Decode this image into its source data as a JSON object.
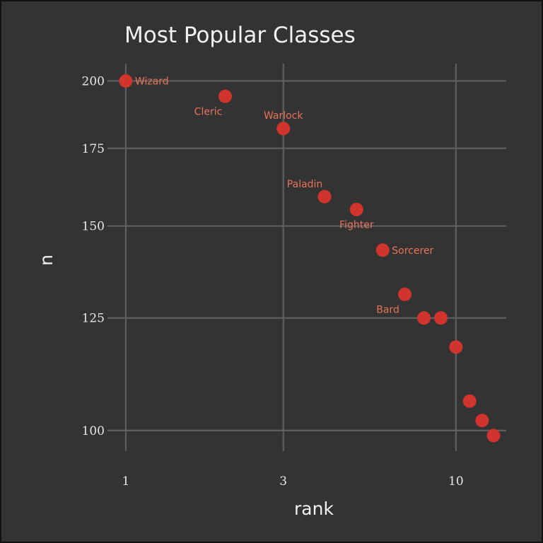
{
  "chart_data": {
    "type": "scatter",
    "title": "Most Popular Classes",
    "xlabel": "rank",
    "ylabel": "n",
    "x_scale": "log",
    "y_scale": "log",
    "xlim": [
      0.88,
      14.2
    ],
    "ylim": [
      96,
      207
    ],
    "x_ticks": [
      1,
      3,
      10
    ],
    "y_ticks": [
      100,
      125,
      150,
      175,
      200
    ],
    "grid": true,
    "point_color": "#d0342c",
    "label_color": "#e8735a",
    "background": "#333333",
    "grid_color": "#5f5f5f",
    "points": [
      {
        "rank": 1,
        "n": 200,
        "label": "Wizard",
        "label_pos": "right"
      },
      {
        "rank": 2,
        "n": 194,
        "label": "Cleric",
        "label_pos": "below-left"
      },
      {
        "rank": 3,
        "n": 182,
        "label": "Warlock",
        "label_pos": "above"
      },
      {
        "rank": 4,
        "n": 159,
        "label": "Paladin",
        "label_pos": "above-left"
      },
      {
        "rank": 5,
        "n": 155,
        "label": "Fighter",
        "label_pos": "below"
      },
      {
        "rank": 6,
        "n": 143,
        "label": "Sorcerer",
        "label_pos": "right"
      },
      {
        "rank": 7,
        "n": 131,
        "label": "Bard",
        "label_pos": "below-left"
      },
      {
        "rank": 8,
        "n": 125,
        "label": ""
      },
      {
        "rank": 9,
        "n": 125,
        "label": ""
      },
      {
        "rank": 10,
        "n": 118,
        "label": ""
      },
      {
        "rank": 11,
        "n": 106,
        "label": ""
      },
      {
        "rank": 12,
        "n": 102,
        "label": ""
      },
      {
        "rank": 13,
        "n": 99,
        "label": ""
      }
    ]
  }
}
